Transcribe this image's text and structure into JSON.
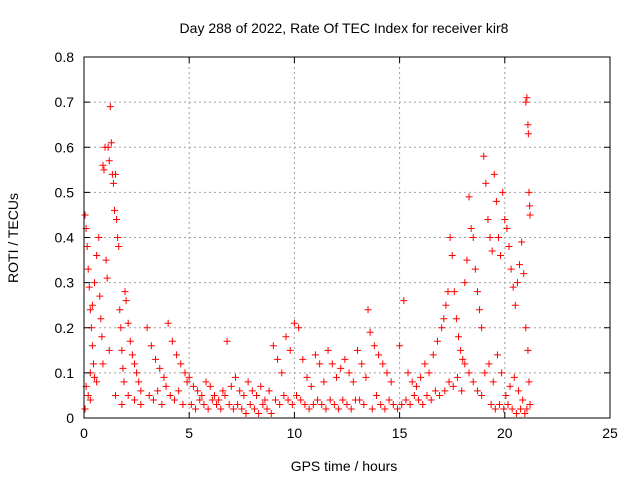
{
  "chart_data": {
    "type": "scatter",
    "title": "Day 288 of 2022, Rate Of TEC Index for receiver kir8",
    "xlabel": "GPS time / hours",
    "ylabel": "ROTI / TECUs",
    "xlim": [
      0,
      25
    ],
    "ylim": [
      0,
      0.8
    ],
    "xticks": [
      0,
      5,
      10,
      15,
      20,
      25
    ],
    "xtick_labels": [
      "0",
      "5",
      "10",
      "15",
      "20",
      "25"
    ],
    "yticks": [
      0,
      0.1,
      0.2,
      0.3,
      0.4,
      0.5,
      0.6,
      0.7,
      0.8
    ],
    "ytick_labels": [
      "0",
      "0.1",
      "0.2",
      "0.3",
      "0.4",
      "0.5",
      "0.6",
      "0.7",
      "0.8"
    ],
    "grid": true,
    "marker": "+",
    "marker_color": "#ff0000",
    "series": [
      {
        "points": [
          [
            0.05,
            0.45
          ],
          [
            0.1,
            0.42
          ],
          [
            0.15,
            0.38
          ],
          [
            0.2,
            0.33
          ],
          [
            0.25,
            0.29
          ],
          [
            0.3,
            0.24
          ],
          [
            0.35,
            0.2
          ],
          [
            0.4,
            0.16
          ],
          [
            0.45,
            0.12
          ],
          [
            0.5,
            0.09
          ],
          [
            0.1,
            0.07
          ],
          [
            0.2,
            0.05
          ],
          [
            0.3,
            0.1
          ],
          [
            0.4,
            0.25
          ],
          [
            0.5,
            0.3
          ],
          [
            0.6,
            0.36
          ],
          [
            0.7,
            0.4
          ],
          [
            0.75,
            0.27
          ],
          [
            0.8,
            0.22
          ],
          [
            0.85,
            0.18
          ],
          [
            0.9,
            0.56
          ],
          [
            0.95,
            0.55
          ],
          [
            1.0,
            0.6
          ],
          [
            1.05,
            0.35
          ],
          [
            1.1,
            0.31
          ],
          [
            1.15,
            0.6
          ],
          [
            1.2,
            0.57
          ],
          [
            1.25,
            0.69
          ],
          [
            1.3,
            0.61
          ],
          [
            1.35,
            0.54
          ],
          [
            1.4,
            0.52
          ],
          [
            1.45,
            0.46
          ],
          [
            1.5,
            0.54
          ],
          [
            1.55,
            0.44
          ],
          [
            1.6,
            0.4
          ],
          [
            1.65,
            0.38
          ],
          [
            1.7,
            0.24
          ],
          [
            1.75,
            0.2
          ],
          [
            1.8,
            0.15
          ],
          [
            1.85,
            0.11
          ],
          [
            1.9,
            0.08
          ],
          [
            1.95,
            0.28
          ],
          [
            2.0,
            0.26
          ],
          [
            2.1,
            0.21
          ],
          [
            2.2,
            0.17
          ],
          [
            2.3,
            0.14
          ],
          [
            2.4,
            0.12
          ],
          [
            2.5,
            0.1
          ],
          [
            2.6,
            0.08
          ],
          [
            2.7,
            0.06
          ],
          [
            0.05,
            0.02
          ],
          [
            0.3,
            0.04
          ],
          [
            0.6,
            0.08
          ],
          [
            0.9,
            0.12
          ],
          [
            1.2,
            0.15
          ],
          [
            1.5,
            0.05
          ],
          [
            1.8,
            0.03
          ],
          [
            2.1,
            0.05
          ],
          [
            2.4,
            0.04
          ],
          [
            2.7,
            0.03
          ],
          [
            3.0,
            0.2
          ],
          [
            3.2,
            0.16
          ],
          [
            3.4,
            0.13
          ],
          [
            3.6,
            0.11
          ],
          [
            3.8,
            0.09
          ],
          [
            4.0,
            0.21
          ],
          [
            4.2,
            0.17
          ],
          [
            4.4,
            0.14
          ],
          [
            4.6,
            0.12
          ],
          [
            4.8,
            0.1
          ],
          [
            3.1,
            0.05
          ],
          [
            3.3,
            0.04
          ],
          [
            3.5,
            0.06
          ],
          [
            3.7,
            0.03
          ],
          [
            3.9,
            0.07
          ],
          [
            4.1,
            0.05
          ],
          [
            4.3,
            0.04
          ],
          [
            4.5,
            0.06
          ],
          [
            4.7,
            0.03
          ],
          [
            4.9,
            0.08
          ],
          [
            5.0,
            0.09
          ],
          [
            5.2,
            0.07
          ],
          [
            5.4,
            0.06
          ],
          [
            5.6,
            0.05
          ],
          [
            5.8,
            0.08
          ],
          [
            6.0,
            0.07
          ],
          [
            6.2,
            0.05
          ],
          [
            6.4,
            0.04
          ],
          [
            6.6,
            0.06
          ],
          [
            6.8,
            0.17
          ],
          [
            5.1,
            0.03
          ],
          [
            5.3,
            0.02
          ],
          [
            5.5,
            0.04
          ],
          [
            5.7,
            0.03
          ],
          [
            5.9,
            0.02
          ],
          [
            6.1,
            0.04
          ],
          [
            6.3,
            0.03
          ],
          [
            6.5,
            0.02
          ],
          [
            6.7,
            0.05
          ],
          [
            6.9,
            0.03
          ],
          [
            7.0,
            0.07
          ],
          [
            7.2,
            0.09
          ],
          [
            7.4,
            0.06
          ],
          [
            7.6,
            0.05
          ],
          [
            7.8,
            0.08
          ],
          [
            8.0,
            0.06
          ],
          [
            8.2,
            0.05
          ],
          [
            8.4,
            0.07
          ],
          [
            8.6,
            0.04
          ],
          [
            8.8,
            0.06
          ],
          [
            7.1,
            0.02
          ],
          [
            7.3,
            0.03
          ],
          [
            7.5,
            0.02
          ],
          [
            7.7,
            0.01
          ],
          [
            7.9,
            0.03
          ],
          [
            8.1,
            0.02
          ],
          [
            8.3,
            0.01
          ],
          [
            8.5,
            0.03
          ],
          [
            8.7,
            0.02
          ],
          [
            8.9,
            0.01
          ],
          [
            9.0,
            0.16
          ],
          [
            9.2,
            0.13
          ],
          [
            9.4,
            0.1
          ],
          [
            9.6,
            0.18
          ],
          [
            9.8,
            0.15
          ],
          [
            10.0,
            0.21
          ],
          [
            10.2,
            0.2
          ],
          [
            10.4,
            0.13
          ],
          [
            10.6,
            0.09
          ],
          [
            10.8,
            0.07
          ],
          [
            9.1,
            0.04
          ],
          [
            9.3,
            0.03
          ],
          [
            9.5,
            0.05
          ],
          [
            9.7,
            0.04
          ],
          [
            9.9,
            0.03
          ],
          [
            10.1,
            0.05
          ],
          [
            10.3,
            0.04
          ],
          [
            10.5,
            0.03
          ],
          [
            10.7,
            0.02
          ],
          [
            10.9,
            0.03
          ],
          [
            11.0,
            0.14
          ],
          [
            11.2,
            0.12
          ],
          [
            11.4,
            0.08
          ],
          [
            11.6,
            0.15
          ],
          [
            11.8,
            0.12
          ],
          [
            12.0,
            0.09
          ],
          [
            12.2,
            0.11
          ],
          [
            12.4,
            0.13
          ],
          [
            12.6,
            0.1
          ],
          [
            12.8,
            0.08
          ],
          [
            11.1,
            0.04
          ],
          [
            11.3,
            0.03
          ],
          [
            11.5,
            0.02
          ],
          [
            11.7,
            0.04
          ],
          [
            11.9,
            0.03
          ],
          [
            12.1,
            0.02
          ],
          [
            12.3,
            0.04
          ],
          [
            12.5,
            0.03
          ],
          [
            12.7,
            0.02
          ],
          [
            12.9,
            0.04
          ],
          [
            13.0,
            0.15
          ],
          [
            13.2,
            0.12
          ],
          [
            13.4,
            0.09
          ],
          [
            13.5,
            0.24
          ],
          [
            13.6,
            0.19
          ],
          [
            13.8,
            0.16
          ],
          [
            14.0,
            0.14
          ],
          [
            14.2,
            0.12
          ],
          [
            14.4,
            0.1
          ],
          [
            14.6,
            0.08
          ],
          [
            13.1,
            0.04
          ],
          [
            13.3,
            0.03
          ],
          [
            13.7,
            0.02
          ],
          [
            13.9,
            0.05
          ],
          [
            14.1,
            0.03
          ],
          [
            14.3,
            0.02
          ],
          [
            14.5,
            0.04
          ],
          [
            14.7,
            0.03
          ],
          [
            14.9,
            0.02
          ],
          [
            15.0,
            0.16
          ],
          [
            15.2,
            0.26
          ],
          [
            15.4,
            0.1
          ],
          [
            15.6,
            0.08
          ],
          [
            15.8,
            0.07
          ],
          [
            16.0,
            0.09
          ],
          [
            16.2,
            0.12
          ],
          [
            16.4,
            0.1
          ],
          [
            16.6,
            0.14
          ],
          [
            16.8,
            0.17
          ],
          [
            17.0,
            0.2
          ],
          [
            15.1,
            0.03
          ],
          [
            15.3,
            0.04
          ],
          [
            15.5,
            0.03
          ],
          [
            15.7,
            0.05
          ],
          [
            15.9,
            0.04
          ],
          [
            16.1,
            0.03
          ],
          [
            16.3,
            0.05
          ],
          [
            16.5,
            0.04
          ],
          [
            16.7,
            0.06
          ],
          [
            16.9,
            0.05
          ],
          [
            17.1,
            0.22
          ],
          [
            17.2,
            0.25
          ],
          [
            17.3,
            0.28
          ],
          [
            17.4,
            0.4
          ],
          [
            17.5,
            0.36
          ],
          [
            17.6,
            0.28
          ],
          [
            17.7,
            0.22
          ],
          [
            17.8,
            0.18
          ],
          [
            17.9,
            0.15
          ],
          [
            18.0,
            0.13
          ],
          [
            17.15,
            0.06
          ],
          [
            17.35,
            0.08
          ],
          [
            17.55,
            0.07
          ],
          [
            17.75,
            0.09
          ],
          [
            17.95,
            0.06
          ],
          [
            18.1,
            0.12
          ],
          [
            18.3,
            0.1
          ],
          [
            18.5,
            0.08
          ],
          [
            18.7,
            0.06
          ],
          [
            18.9,
            0.05
          ],
          [
            18.1,
            0.3
          ],
          [
            18.2,
            0.35
          ],
          [
            18.3,
            0.49
          ],
          [
            18.4,
            0.42
          ],
          [
            18.5,
            0.4
          ],
          [
            18.6,
            0.33
          ],
          [
            18.7,
            0.28
          ],
          [
            18.8,
            0.24
          ],
          [
            18.9,
            0.2
          ],
          [
            19.0,
            0.58
          ],
          [
            19.1,
            0.52
          ],
          [
            19.2,
            0.44
          ],
          [
            19.3,
            0.4
          ],
          [
            19.4,
            0.37
          ],
          [
            19.5,
            0.54
          ],
          [
            19.6,
            0.48
          ],
          [
            19.7,
            0.4
          ],
          [
            19.8,
            0.36
          ],
          [
            19.9,
            0.5
          ],
          [
            20.0,
            0.44
          ],
          [
            19.05,
            0.1
          ],
          [
            19.25,
            0.12
          ],
          [
            19.45,
            0.08
          ],
          [
            19.65,
            0.14
          ],
          [
            19.85,
            0.1
          ],
          [
            20.05,
            0.05
          ],
          [
            20.25,
            0.07
          ],
          [
            20.45,
            0.09
          ],
          [
            20.65,
            0.06
          ],
          [
            20.85,
            0.04
          ],
          [
            20.1,
            0.42
          ],
          [
            20.2,
            0.38
          ],
          [
            20.3,
            0.33
          ],
          [
            20.4,
            0.29
          ],
          [
            20.5,
            0.25
          ],
          [
            20.6,
            0.3
          ],
          [
            20.7,
            0.34
          ],
          [
            20.8,
            0.39
          ],
          [
            20.9,
            0.32
          ],
          [
            21.0,
            0.7
          ],
          [
            21.05,
            0.71
          ],
          [
            21.1,
            0.65
          ],
          [
            21.12,
            0.63
          ],
          [
            21.15,
            0.5
          ],
          [
            21.18,
            0.47
          ],
          [
            21.2,
            0.45
          ],
          [
            21.0,
            0.2
          ],
          [
            21.1,
            0.15
          ],
          [
            21.15,
            0.08
          ],
          [
            21.2,
            0.03
          ],
          [
            20.95,
            0.01
          ],
          [
            21.05,
            0.02
          ],
          [
            20.75,
            0.02
          ],
          [
            20.55,
            0.01
          ],
          [
            20.35,
            0.02
          ],
          [
            20.15,
            0.03
          ],
          [
            19.95,
            0.02
          ],
          [
            19.75,
            0.03
          ],
          [
            19.55,
            0.02
          ],
          [
            19.35,
            0.03
          ]
        ]
      }
    ]
  }
}
